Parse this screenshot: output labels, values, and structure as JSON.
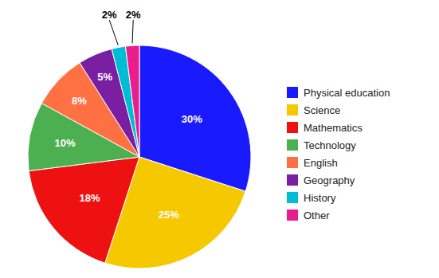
{
  "chart_data": {
    "type": "pie",
    "categories": [
      "Physical education",
      "Science",
      "Mathematics",
      "Technology",
      "English",
      "Geography",
      "History",
      "Other"
    ],
    "values": [
      30,
      25,
      18,
      10,
      8,
      5,
      2,
      2
    ],
    "value_labels": [
      "30%",
      "25%",
      "18%",
      "10%",
      "8%",
      "5%",
      "2%",
      "2%"
    ],
    "colors": [
      "#1a1aff",
      "#f5c800",
      "#ee1111",
      "#4caf50",
      "#ff7043",
      "#7b1fa2",
      "#00bcd4",
      "#e91e8c"
    ],
    "data_labels": true,
    "legend": "right"
  }
}
